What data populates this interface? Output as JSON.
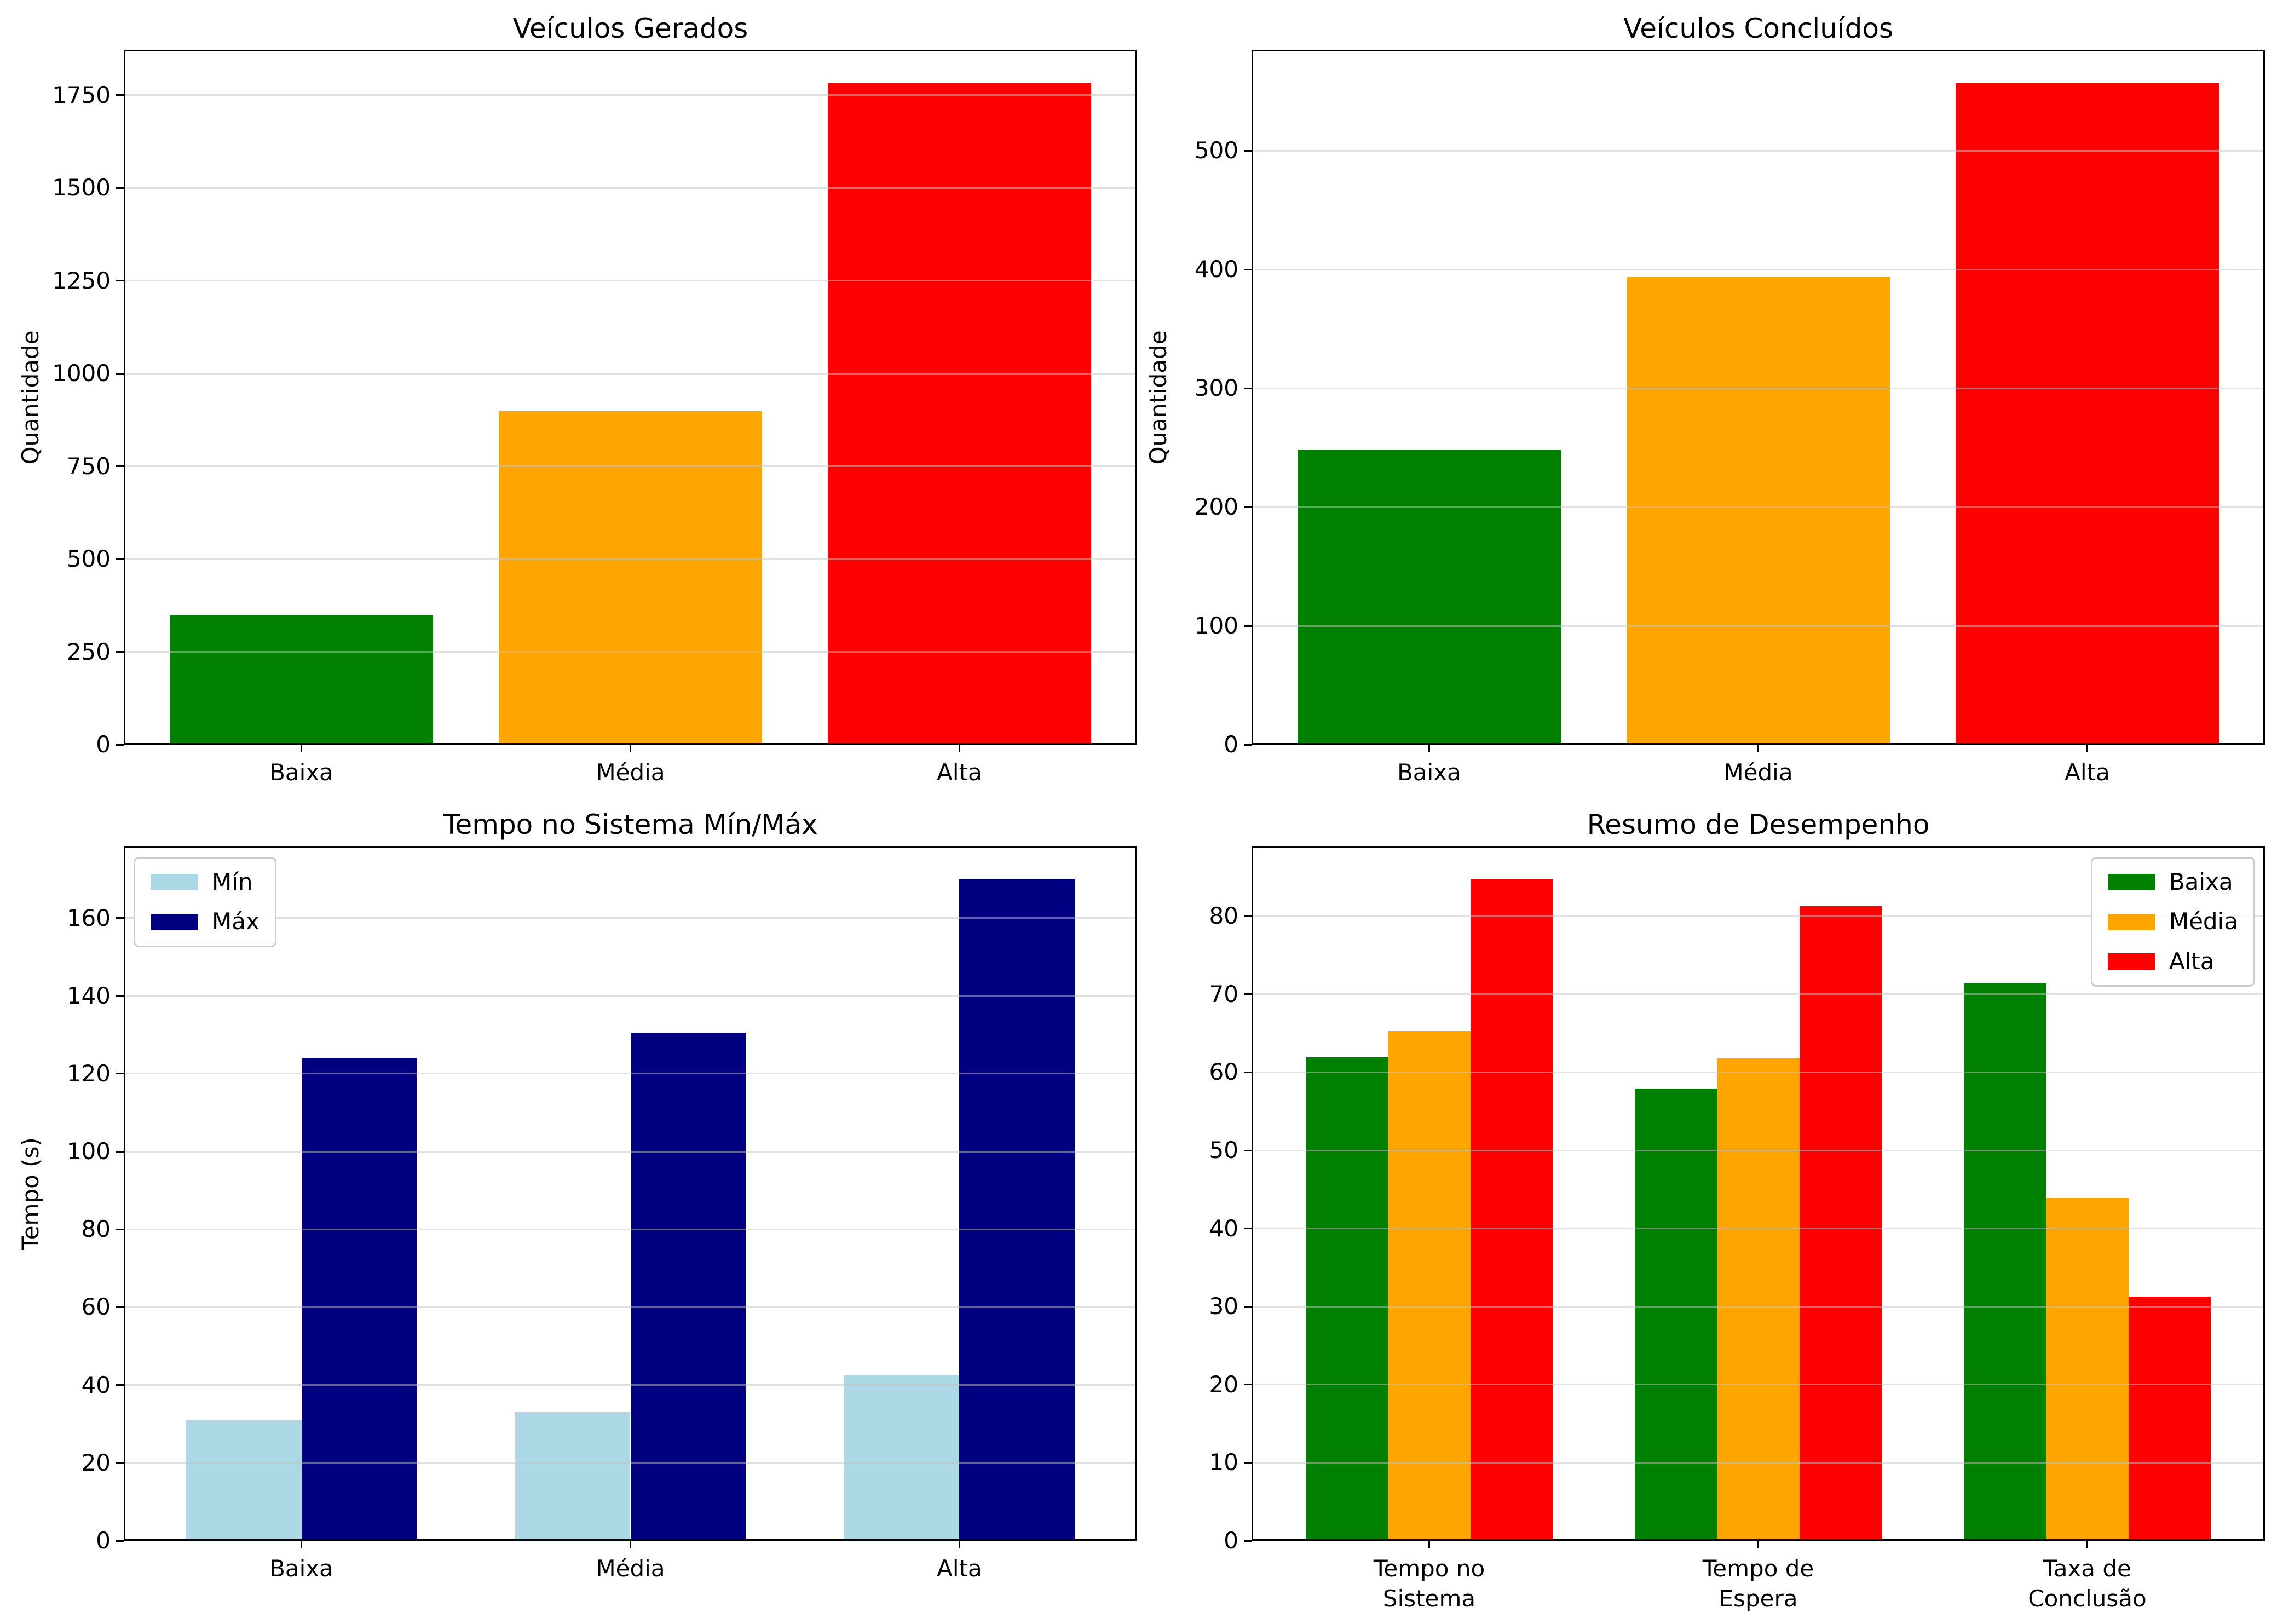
{
  "colors": {
    "baixa_green": "#008000",
    "media_orange": "#FFA500",
    "alta_red": "#FF0000",
    "min_lightblue": "#ADD8E6",
    "max_navy": "#000080",
    "grid": "#c3c3c3",
    "axis": "#000000",
    "background": "#ffffff"
  },
  "chart_data": [
    {
      "id": "veiculos-gerados",
      "type": "bar",
      "title": "Veículos Gerados",
      "xlabel": "",
      "ylabel": "Quantidade",
      "categories": [
        "Baixa",
        "Média",
        "Alta"
      ],
      "values": [
        350,
        898,
        1783
      ],
      "bar_colors": [
        "#008000",
        "#FFA500",
        "#FF0000"
      ],
      "yticks": [
        0,
        250,
        500,
        750,
        1000,
        1250,
        1500,
        1750
      ],
      "ylim": [
        0,
        1872
      ],
      "grid": true,
      "legend": null
    },
    {
      "id": "veiculos-concluidos",
      "type": "bar",
      "title": "Veículos Concluídos",
      "xlabel": "",
      "ylabel": "Quantidade",
      "categories": [
        "Baixa",
        "Média",
        "Alta"
      ],
      "values": [
        248,
        394,
        557
      ],
      "bar_colors": [
        "#008000",
        "#FFA500",
        "#FF0000"
      ],
      "yticks": [
        0,
        100,
        200,
        300,
        400,
        500
      ],
      "ylim": [
        0,
        585
      ],
      "grid": true,
      "legend": null
    },
    {
      "id": "tempo-no-sistema-min-max",
      "type": "bar",
      "title": "Tempo no Sistema Mín/Máx",
      "xlabel": "",
      "ylabel": "Tempo (s)",
      "categories": [
        "Baixa",
        "Média",
        "Alta"
      ],
      "series": [
        {
          "name": "Mín",
          "color": "#ADD8E6",
          "values": [
            31,
            33,
            42.5
          ]
        },
        {
          "name": "Máx",
          "color": "#000080",
          "values": [
            124,
            130.5,
            170
          ]
        }
      ],
      "yticks": [
        0,
        20,
        40,
        60,
        80,
        100,
        120,
        140,
        160
      ],
      "ylim": [
        0,
        178.5
      ],
      "grid": true,
      "legend": {
        "position": "upper-left",
        "labels": [
          "Mín",
          "Máx"
        ]
      }
    },
    {
      "id": "resumo-de-desempenho",
      "type": "bar",
      "title": "Resumo de Desempenho",
      "xlabel": "",
      "ylabel": "",
      "categories": [
        "Tempo no\nSistema",
        "Tempo de\nEspera",
        "Taxa de\nConclusão"
      ],
      "series": [
        {
          "name": "Baixa",
          "color": "#008000",
          "values": [
            61.9,
            57.9,
            71.5
          ]
        },
        {
          "name": "Média",
          "color": "#FFA500",
          "values": [
            65.3,
            61.8,
            43.9
          ]
        },
        {
          "name": "Alta",
          "color": "#FF0000",
          "values": [
            84.8,
            81.3,
            31.3
          ]
        }
      ],
      "yticks": [
        0,
        10,
        20,
        30,
        40,
        50,
        60,
        70,
        80
      ],
      "ylim": [
        0,
        89
      ],
      "grid": true,
      "legend": {
        "position": "upper-right",
        "labels": [
          "Baixa",
          "Média",
          "Alta"
        ]
      }
    }
  ]
}
